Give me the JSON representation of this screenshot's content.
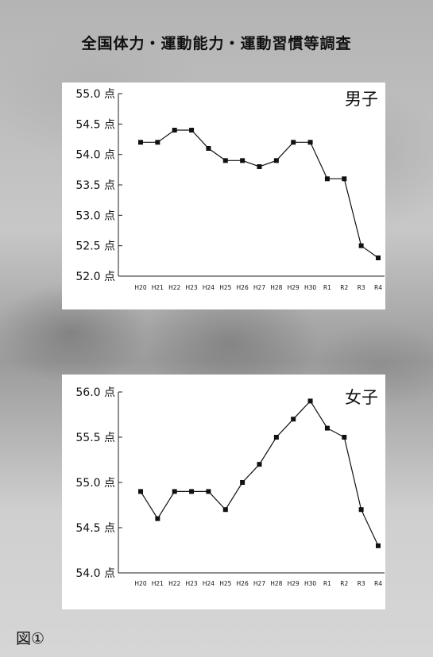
{
  "title": "全国体力・運動能力・運動習慣等調査",
  "figure_label": "図①",
  "unit": "点",
  "chart_data": [
    {
      "type": "line",
      "title": "男子",
      "categories": [
        "H20",
        "H21",
        "H22",
        "H23",
        "H24",
        "H25",
        "H26",
        "H27",
        "H28",
        "H29",
        "H30",
        "R1",
        "R2",
        "R3",
        "R4"
      ],
      "values": [
        54.2,
        54.2,
        54.4,
        54.4,
        54.1,
        53.9,
        53.9,
        53.8,
        53.9,
        54.2,
        54.2,
        53.6,
        53.6,
        52.5,
        52.3
      ],
      "yticks": [
        "55.0 点",
        "54.5 点",
        "54.0 点",
        "53.5 点",
        "53.0 点",
        "52.5 点",
        "52.0 点"
      ],
      "ylim": [
        52.0,
        55.0
      ],
      "ytick_values": [
        55.0,
        54.5,
        54.0,
        53.5,
        53.0,
        52.5,
        52.0
      ],
      "color": "#111111"
    },
    {
      "type": "line",
      "title": "女子",
      "categories": [
        "H20",
        "H21",
        "H22",
        "H23",
        "H24",
        "H25",
        "H26",
        "H27",
        "H28",
        "H29",
        "H30",
        "R1",
        "R2",
        "R3",
        "R4"
      ],
      "values": [
        54.9,
        54.6,
        54.9,
        54.9,
        54.9,
        54.7,
        55.0,
        55.2,
        55.5,
        55.7,
        55.9,
        55.6,
        55.5,
        54.7,
        54.3
      ],
      "yticks": [
        "56.0 点",
        "55.5 点",
        "55.0 点",
        "54.5 点",
        "54.0 点"
      ],
      "ylim": [
        54.0,
        56.0
      ],
      "ytick_values": [
        56.0,
        55.5,
        55.0,
        54.5,
        54.0
      ],
      "color": "#111111"
    }
  ]
}
